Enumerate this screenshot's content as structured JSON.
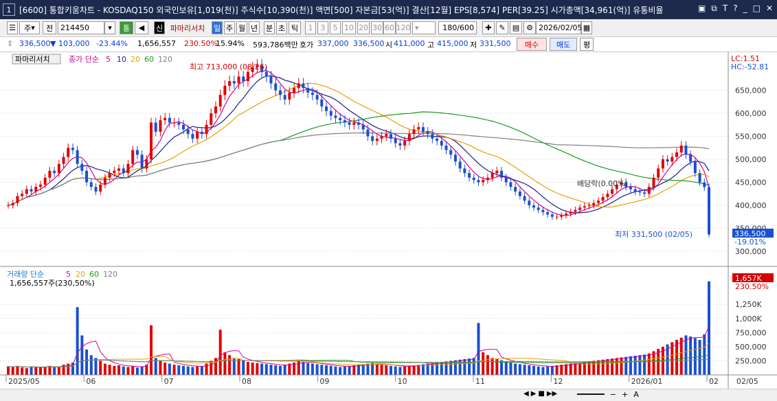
{
  "window": {
    "number": "1",
    "title": "[6600] 통합키움차트 - KOSDAQ150 외국인보유[1,019(천)] 주식수[10,390(천)] 액면[500] 자본금[53(억)] 결산[12월] EPS[8,574] PER[39.25] 시가총액[34,961(억)] 유통비율"
  },
  "toolbar": {
    "period": "주",
    "type": "전",
    "code": "214450",
    "tong": "통",
    "sin": "신",
    "stock_name": "파마리서치",
    "intervals": [
      "일",
      "주",
      "월",
      "년",
      "분",
      "초",
      "틱"
    ],
    "active_interval": "일",
    "minutes": [
      "1",
      "3",
      "5",
      "10",
      "20",
      "30",
      "60",
      "120"
    ],
    "count": "180/600",
    "date": "2026/02/05"
  },
  "quote": {
    "price": "336,500",
    "change": "▼ 103,000",
    "change_pct": "-23.44%",
    "volume": "1,656,557",
    "volume_ratio": "230.50%",
    "turnover": "15.94%",
    "amount": "593,786백만",
    "hoga_label": "호가",
    "ask": "337,000",
    "bid": "336,500",
    "open_label": "시",
    "open": "411,000",
    "high_label": "고",
    "high": "415,000",
    "low_label": "저",
    "low": "331,500",
    "buy": "매수",
    "sell": "매도",
    "flat": "평"
  },
  "colors": {
    "up": "#e00000",
    "down": "#1a4fd0",
    "ma5": "#d0009a",
    "ma10": "#1c1c8c",
    "ma20": "#e8a000",
    "ma60": "#1a9a1a",
    "ma120": "#808080"
  },
  "chart_data": [
    {
      "type": "candlestick",
      "legend": {
        "name": "파마리서치",
        "label": "종가 단순",
        "periods": [
          "5",
          "10",
          "20",
          "60",
          "120"
        ]
      },
      "x_labels": [
        "2025/05",
        "06",
        "07",
        "08",
        "09",
        "10",
        "11",
        "12",
        "2026/01",
        "02",
        "02/05"
      ],
      "ylim": [
        270000,
        730000
      ],
      "y_ticks": [
        300000,
        350000,
        400000,
        450000,
        500000,
        550000,
        600000,
        650000
      ],
      "y_tick_labels": [
        "300,000",
        "350,000",
        "400,000",
        "450,000",
        "500,000",
        "550,000",
        "600,000",
        "650,000"
      ],
      "lc": "LC:1.51",
      "hc": "HC:-52.81",
      "last_price_label": "336,500",
      "last_pct_label": "-19.01%",
      "annotations": {
        "high": "최고 713,000 (08/26)",
        "low": "최저 331,500 (02/05)",
        "dividend": "배당락(0.00%)"
      },
      "close": [
        400000,
        405000,
        420000,
        425000,
        435000,
        430000,
        440000,
        445000,
        460000,
        475000,
        470000,
        490000,
        505000,
        525000,
        520000,
        490000,
        475000,
        450000,
        440000,
        430000,
        445000,
        460000,
        470000,
        475000,
        480000,
        470000,
        490000,
        520000,
        510000,
        480000,
        500000,
        580000,
        560000,
        585000,
        590000,
        580000,
        580000,
        575000,
        565000,
        555000,
        545000,
        560000,
        555000,
        575000,
        600000,
        615000,
        640000,
        660000,
        670000,
        665000,
        680000,
        670000,
        690000,
        700000,
        705000,
        690000,
        680000,
        665000,
        650000,
        640000,
        630000,
        645000,
        655000,
        665000,
        655000,
        645000,
        640000,
        630000,
        615000,
        605000,
        595000,
        590000,
        585000,
        580000,
        575000,
        580000,
        575000,
        565000,
        550000,
        540000,
        545000,
        550000,
        555000,
        545000,
        535000,
        530000,
        540000,
        555000,
        565000,
        570000,
        560000,
        555000,
        545000,
        540000,
        530000,
        520000,
        510000,
        495000,
        480000,
        470000,
        460000,
        455000,
        450000,
        455000,
        460000,
        470000,
        475000,
        460000,
        450000,
        440000,
        430000,
        420000,
        410000,
        400000,
        395000,
        390000,
        385000,
        380000,
        375000,
        375000,
        378000,
        382000,
        386000,
        390000,
        395000,
        398000,
        400000,
        405000,
        410000,
        418000,
        425000,
        435000,
        445000,
        450000,
        440000,
        435000,
        430000,
        428000,
        425000,
        440000,
        460000,
        480000,
        500000,
        495000,
        505000,
        515000,
        530000,
        510000,
        495000,
        470000,
        450000,
        439500,
        336500
      ],
      "volume_panel": {
        "label": "거래량 단순",
        "periods": [
          "5",
          "20",
          "60",
          "120"
        ],
        "value_label": "1,656,557주(230,50%)",
        "ylim": [
          0,
          1800000
        ],
        "y_tick_labels": [
          "250,000",
          "500,000",
          "750,000",
          "1,000K",
          "1,250K"
        ],
        "y_ticks": [
          250000,
          500000,
          750000,
          1000000,
          1250000
        ],
        "last_label": "1,657K",
        "last_pct": "230.50%",
        "volume": [
          150000,
          140000,
          160000,
          130000,
          120000,
          150000,
          140000,
          130000,
          145000,
          160000,
          140000,
          150000,
          180000,
          200000,
          220000,
          1200000,
          700000,
          450000,
          350000,
          300000,
          250000,
          200000,
          180000,
          160000,
          170000,
          150000,
          140000,
          160000,
          130000,
          150000,
          180000,
          880000,
          300000,
          250000,
          220000,
          200000,
          180000,
          170000,
          160000,
          150000,
          140000,
          150000,
          160000,
          200000,
          250000,
          300000,
          800000,
          400000,
          350000,
          300000,
          280000,
          250000,
          230000,
          220000,
          210000,
          200000,
          190000,
          180000,
          170000,
          160000,
          180000,
          200000,
          220000,
          250000,
          230000,
          210000,
          200000,
          190000,
          180000,
          170000,
          160000,
          150000,
          140000,
          150000,
          160000,
          170000,
          180000,
          190000,
          200000,
          210000,
          190000,
          180000,
          170000,
          160000,
          150000,
          140000,
          150000,
          160000,
          170000,
          180000,
          190000,
          200000,
          210000,
          220000,
          230000,
          240000,
          250000,
          260000,
          270000,
          280000,
          290000,
          300000,
          920000,
          400000,
          350000,
          300000,
          280000,
          260000,
          240000,
          220000,
          200000,
          190000,
          180000,
          170000,
          160000,
          150000,
          140000,
          150000,
          160000,
          170000,
          180000,
          190000,
          200000,
          210000,
          220000,
          230000,
          240000,
          250000,
          260000,
          270000,
          280000,
          290000,
          300000,
          310000,
          320000,
          330000,
          340000,
          350000,
          360000,
          380000,
          420000,
          460000,
          500000,
          540000,
          580000,
          620000,
          660000,
          700000,
          680000,
          650000,
          620000,
          720000,
          1657000
        ]
      }
    }
  ],
  "status_controls": [
    "◀",
    "▶",
    "■",
    "▶▶"
  ]
}
